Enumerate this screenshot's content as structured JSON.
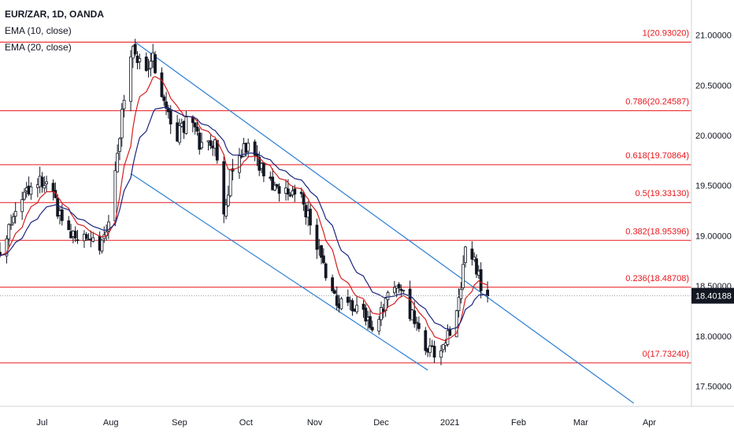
{
  "legend": {
    "symbol": "EUR/ZAR, 1D, OANDA",
    "ema10": "EMA (10, close)",
    "ema20": "EMA (20, close)"
  },
  "colors": {
    "fib_line": "#e8161b",
    "channel": "#2a7fd4",
    "ema10": "#d41f1f",
    "ema20": "#1a237e",
    "candle": "#131722",
    "price_badge_bg": "#131722",
    "price_badge_text": "#ffffff"
  },
  "chart_data": {
    "type": "candlestick",
    "instrument": "EUR/ZAR",
    "timeframe": "1D",
    "source": "OANDA",
    "x_axis_labels": [
      "Jul",
      "Aug",
      "Sep",
      "Oct",
      "Nov",
      "Dec",
      "2021",
      "Feb",
      "Mar",
      "Apr"
    ],
    "x_range": [
      "2020-06-12",
      "2021-04-20"
    ],
    "y_axis_labels": [
      "21.00000",
      "20.50000",
      "20.00000",
      "19.50000",
      "19.00000",
      "18.50000",
      "18.00000",
      "17.50000"
    ],
    "y_range": [
      17.3,
      21.35
    ],
    "last_price": "18.40188",
    "fib_levels": [
      {
        "label": "1(20.93020)",
        "value": 20.9302
      },
      {
        "label": "0.786(20.24587)",
        "value": 20.24587
      },
      {
        "label": "0.618(19.70864)",
        "value": 19.70864
      },
      {
        "label": "0.5(19.33130)",
        "value": 19.3313
      },
      {
        "label": "0.382(18.95396)",
        "value": 18.95396
      },
      {
        "label": "0.236(18.48708)",
        "value": 18.48708
      },
      {
        "label": "0(17.73240)",
        "value": 17.7324
      }
    ],
    "channel_lines": [
      {
        "name": "upper",
        "start": [
          "2020-08-12",
          20.93
        ],
        "end": [
          "2021-03-25",
          17.33
        ]
      },
      {
        "name": "lower",
        "start": [
          "2020-08-10",
          19.62
        ],
        "end": [
          "2020-12-22",
          17.66
        ]
      }
    ],
    "close_anchors": [
      [
        "2020-06-12",
        18.85
      ],
      [
        "2020-06-20",
        19.3
      ],
      [
        "2020-06-28",
        19.55
      ],
      [
        "2020-07-05",
        19.45
      ],
      [
        "2020-07-10",
        19.15
      ],
      [
        "2020-07-18",
        18.95
      ],
      [
        "2020-07-25",
        18.9
      ],
      [
        "2020-07-29",
        18.95
      ],
      [
        "2020-08-01",
        19.3
      ],
      [
        "2020-08-05",
        20.0
      ],
      [
        "2020-08-08",
        20.55
      ],
      [
        "2020-08-11",
        20.85
      ],
      [
        "2020-08-15",
        20.65
      ],
      [
        "2020-08-20",
        20.75
      ],
      [
        "2020-08-25",
        20.3
      ],
      [
        "2020-08-31",
        20.0
      ],
      [
        "2020-09-05",
        20.15
      ],
      [
        "2020-09-12",
        19.85
      ],
      [
        "2020-09-17",
        19.9
      ],
      [
        "2020-09-21",
        19.25
      ],
      [
        "2020-09-25",
        19.7
      ],
      [
        "2020-10-02",
        19.9
      ],
      [
        "2020-10-05",
        19.85
      ],
      [
        "2020-10-10",
        19.5
      ],
      [
        "2020-10-18",
        19.5
      ],
      [
        "2020-10-25",
        19.4
      ],
      [
        "2020-10-30",
        19.15
      ],
      [
        "2020-11-05",
        18.7
      ],
      [
        "2020-11-10",
        18.4
      ],
      [
        "2020-11-15",
        18.3
      ],
      [
        "2020-11-22",
        18.25
      ],
      [
        "2020-11-27",
        18.05
      ],
      [
        "2020-12-05",
        18.4
      ],
      [
        "2020-12-10",
        18.45
      ],
      [
        "2020-12-15",
        18.2
      ],
      [
        "2020-12-20",
        17.9
      ],
      [
        "2020-12-25",
        17.82
      ],
      [
        "2020-12-30",
        17.95
      ],
      [
        "2021-01-03",
        18.1
      ],
      [
        "2021-01-06",
        18.45
      ],
      [
        "2021-01-08",
        18.85
      ],
      [
        "2021-01-12",
        18.75
      ],
      [
        "2021-01-15",
        18.5
      ],
      [
        "2021-01-18",
        18.4
      ]
    ]
  }
}
